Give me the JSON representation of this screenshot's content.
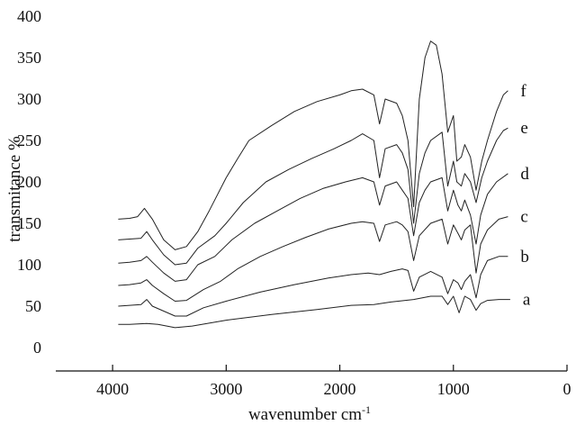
{
  "chart_data": {
    "type": "line",
    "title": "",
    "xlabel": "wavenumber cm",
    "xlabel_superscript": "-1",
    "ylabel": "transmitance %",
    "xlim": [
      4500,
      0
    ],
    "ylim": [
      0,
      400
    ],
    "x_ticks": [
      4000,
      3000,
      2000,
      1000,
      0
    ],
    "y_ticks": [
      0,
      50,
      100,
      150,
      200,
      250,
      300,
      350,
      400
    ],
    "grid": false,
    "legend": "inline labels at right end of each curve",
    "series": [
      {
        "name": "a",
        "points": [
          [
            3950,
            28
          ],
          [
            3850,
            28
          ],
          [
            3700,
            29
          ],
          [
            3600,
            28
          ],
          [
            3450,
            24
          ],
          [
            3300,
            26
          ],
          [
            3000,
            33
          ],
          [
            2600,
            40
          ],
          [
            2200,
            46
          ],
          [
            1900,
            51
          ],
          [
            1700,
            52
          ],
          [
            1550,
            55
          ],
          [
            1350,
            58
          ],
          [
            1200,
            62
          ],
          [
            1100,
            62
          ],
          [
            1050,
            52
          ],
          [
            1000,
            62
          ],
          [
            950,
            42
          ],
          [
            900,
            62
          ],
          [
            850,
            58
          ],
          [
            800,
            45
          ],
          [
            760,
            53
          ],
          [
            700,
            57
          ],
          [
            600,
            58
          ],
          [
            500,
            58
          ]
        ]
      },
      {
        "name": "b",
        "points": [
          [
            3950,
            50
          ],
          [
            3850,
            51
          ],
          [
            3750,
            52
          ],
          [
            3700,
            58
          ],
          [
            3650,
            50
          ],
          [
            3550,
            44
          ],
          [
            3450,
            38
          ],
          [
            3350,
            38
          ],
          [
            3200,
            48
          ],
          [
            3000,
            56
          ],
          [
            2700,
            67
          ],
          [
            2400,
            76
          ],
          [
            2100,
            84
          ],
          [
            1900,
            88
          ],
          [
            1750,
            90
          ],
          [
            1650,
            88
          ],
          [
            1550,
            92
          ],
          [
            1450,
            95
          ],
          [
            1400,
            93
          ],
          [
            1350,
            68
          ],
          [
            1300,
            85
          ],
          [
            1200,
            92
          ],
          [
            1100,
            85
          ],
          [
            1050,
            65
          ],
          [
            1000,
            82
          ],
          [
            960,
            78
          ],
          [
            930,
            70
          ],
          [
            900,
            80
          ],
          [
            850,
            88
          ],
          [
            800,
            60
          ],
          [
            760,
            88
          ],
          [
            700,
            105
          ],
          [
            600,
            110
          ],
          [
            520,
            110
          ]
        ]
      },
      {
        "name": "c",
        "points": [
          [
            3950,
            75
          ],
          [
            3850,
            76
          ],
          [
            3750,
            78
          ],
          [
            3700,
            82
          ],
          [
            3650,
            75
          ],
          [
            3550,
            65
          ],
          [
            3450,
            56
          ],
          [
            3350,
            57
          ],
          [
            3200,
            70
          ],
          [
            3050,
            80
          ],
          [
            2900,
            95
          ],
          [
            2700,
            110
          ],
          [
            2500,
            122
          ],
          [
            2300,
            133
          ],
          [
            2100,
            143
          ],
          [
            1900,
            150
          ],
          [
            1800,
            152
          ],
          [
            1700,
            150
          ],
          [
            1650,
            128
          ],
          [
            1600,
            148
          ],
          [
            1500,
            152
          ],
          [
            1450,
            148
          ],
          [
            1400,
            140
          ],
          [
            1350,
            105
          ],
          [
            1300,
            135
          ],
          [
            1200,
            150
          ],
          [
            1100,
            155
          ],
          [
            1050,
            125
          ],
          [
            1000,
            148
          ],
          [
            960,
            138
          ],
          [
            930,
            130
          ],
          [
            900,
            142
          ],
          [
            850,
            148
          ],
          [
            800,
            90
          ],
          [
            760,
            125
          ],
          [
            700,
            142
          ],
          [
            600,
            155
          ],
          [
            520,
            158
          ]
        ]
      },
      {
        "name": "d",
        "points": [
          [
            3950,
            102
          ],
          [
            3850,
            103
          ],
          [
            3750,
            105
          ],
          [
            3700,
            110
          ],
          [
            3650,
            103
          ],
          [
            3550,
            90
          ],
          [
            3450,
            80
          ],
          [
            3350,
            82
          ],
          [
            3250,
            100
          ],
          [
            3100,
            110
          ],
          [
            2950,
            130
          ],
          [
            2750,
            150
          ],
          [
            2550,
            165
          ],
          [
            2350,
            180
          ],
          [
            2150,
            192
          ],
          [
            1950,
            200
          ],
          [
            1800,
            205
          ],
          [
            1700,
            200
          ],
          [
            1650,
            172
          ],
          [
            1600,
            195
          ],
          [
            1500,
            200
          ],
          [
            1450,
            190
          ],
          [
            1400,
            180
          ],
          [
            1350,
            135
          ],
          [
            1300,
            175
          ],
          [
            1250,
            190
          ],
          [
            1200,
            200
          ],
          [
            1100,
            205
          ],
          [
            1050,
            165
          ],
          [
            1000,
            190
          ],
          [
            960,
            172
          ],
          [
            930,
            165
          ],
          [
            900,
            178
          ],
          [
            850,
            160
          ],
          [
            800,
            125
          ],
          [
            760,
            160
          ],
          [
            700,
            185
          ],
          [
            620,
            200
          ],
          [
            520,
            210
          ]
        ]
      },
      {
        "name": "e",
        "points": [
          [
            3950,
            130
          ],
          [
            3850,
            131
          ],
          [
            3750,
            132
          ],
          [
            3700,
            140
          ],
          [
            3650,
            130
          ],
          [
            3550,
            112
          ],
          [
            3450,
            100
          ],
          [
            3350,
            102
          ],
          [
            3250,
            120
          ],
          [
            3100,
            135
          ],
          [
            3000,
            150
          ],
          [
            2850,
            175
          ],
          [
            2650,
            200
          ],
          [
            2450,
            215
          ],
          [
            2250,
            228
          ],
          [
            2050,
            240
          ],
          [
            1900,
            250
          ],
          [
            1800,
            258
          ],
          [
            1700,
            250
          ],
          [
            1650,
            205
          ],
          [
            1600,
            240
          ],
          [
            1500,
            245
          ],
          [
            1450,
            235
          ],
          [
            1400,
            215
          ],
          [
            1350,
            150
          ],
          [
            1300,
            210
          ],
          [
            1250,
            235
          ],
          [
            1200,
            250
          ],
          [
            1100,
            260
          ],
          [
            1050,
            195
          ],
          [
            1000,
            225
          ],
          [
            970,
            200
          ],
          [
            930,
            195
          ],
          [
            900,
            210
          ],
          [
            850,
            200
          ],
          [
            800,
            175
          ],
          [
            750,
            205
          ],
          [
            700,
            225
          ],
          [
            620,
            250
          ],
          [
            560,
            262
          ],
          [
            520,
            265
          ]
        ]
      },
      {
        "name": "f",
        "points": [
          [
            3950,
            155
          ],
          [
            3850,
            156
          ],
          [
            3780,
            158
          ],
          [
            3720,
            168
          ],
          [
            3650,
            155
          ],
          [
            3550,
            130
          ],
          [
            3450,
            118
          ],
          [
            3350,
            122
          ],
          [
            3250,
            140
          ],
          [
            3150,
            165
          ],
          [
            3000,
            205
          ],
          [
            2900,
            228
          ],
          [
            2800,
            250
          ],
          [
            2600,
            268
          ],
          [
            2400,
            285
          ],
          [
            2200,
            297
          ],
          [
            2000,
            305
          ],
          [
            1900,
            310
          ],
          [
            1800,
            312
          ],
          [
            1700,
            305
          ],
          [
            1650,
            270
          ],
          [
            1600,
            300
          ],
          [
            1500,
            295
          ],
          [
            1450,
            280
          ],
          [
            1400,
            250
          ],
          [
            1350,
            170
          ],
          [
            1300,
            300
          ],
          [
            1250,
            350
          ],
          [
            1200,
            370
          ],
          [
            1150,
            365
          ],
          [
            1100,
            330
          ],
          [
            1050,
            260
          ],
          [
            1000,
            280
          ],
          [
            970,
            225
          ],
          [
            930,
            230
          ],
          [
            900,
            245
          ],
          [
            850,
            230
          ],
          [
            800,
            190
          ],
          [
            750,
            225
          ],
          [
            700,
            250
          ],
          [
            620,
            285
          ],
          [
            560,
            305
          ],
          [
            520,
            310
          ]
        ]
      }
    ]
  }
}
